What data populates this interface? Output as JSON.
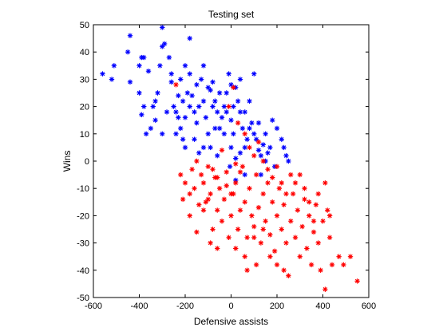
{
  "chart_data": {
    "type": "scatter",
    "title": "Testing set",
    "xlabel": "Defensive assists",
    "ylabel": "Wins",
    "xlim": [
      -600,
      600
    ],
    "ylim": [
      -50,
      50
    ],
    "xticks": [
      -600,
      -400,
      -200,
      0,
      200,
      400,
      600
    ],
    "yticks": [
      50,
      40,
      30,
      20,
      10,
      0,
      -10,
      -20,
      -30,
      -40,
      -50
    ],
    "xtick_labels": [
      "-600",
      "-400",
      "-200",
      "0",
      "200",
      "400",
      "600"
    ],
    "ytick_labels": [
      "50",
      "40",
      "30",
      "20",
      "10",
      "0",
      "-10",
      "-20",
      "-30",
      "-40",
      "-50"
    ],
    "grid": false,
    "marker": "asterisk",
    "series": [
      {
        "color": "#0000ff",
        "points": [
          [
            -560,
            32
          ],
          [
            -510,
            35
          ],
          [
            -520,
            30
          ],
          [
            -440,
            46
          ],
          [
            -450,
            40
          ],
          [
            -440,
            29
          ],
          [
            -400,
            35
          ],
          [
            -390,
            38
          ],
          [
            -380,
            38
          ],
          [
            -360,
            33
          ],
          [
            -400,
            25
          ],
          [
            -380,
            20
          ],
          [
            -390,
            17
          ],
          [
            -370,
            10
          ],
          [
            -350,
            12
          ],
          [
            -340,
            20
          ],
          [
            -330,
            22
          ],
          [
            -320,
            25
          ],
          [
            -310,
            35
          ],
          [
            -300,
            42
          ],
          [
            -300,
            49
          ],
          [
            -290,
            43
          ],
          [
            -270,
            38
          ],
          [
            -260,
            29
          ],
          [
            -250,
            20
          ],
          [
            -240,
            18
          ],
          [
            -230,
            24
          ],
          [
            -220,
            30
          ],
          [
            -210,
            22
          ],
          [
            -200,
            16
          ],
          [
            -190,
            25
          ],
          [
            -180,
            32
          ],
          [
            -170,
            24
          ],
          [
            -160,
            18
          ],
          [
            -150,
            14
          ],
          [
            -140,
            20
          ],
          [
            -130,
            30
          ],
          [
            -120,
            22
          ],
          [
            -110,
            16
          ],
          [
            -100,
            10
          ],
          [
            -90,
            26
          ],
          [
            -80,
            29
          ],
          [
            -70,
            22
          ],
          [
            -60,
            18
          ],
          [
            -50,
            12
          ],
          [
            -40,
            16
          ],
          [
            -30,
            20
          ],
          [
            -20,
            25
          ],
          [
            -10,
            32
          ],
          [
            0,
            15
          ],
          [
            10,
            10
          ],
          [
            20,
            27
          ],
          [
            30,
            22
          ],
          [
            40,
            18
          ],
          [
            50,
            12
          ],
          [
            60,
            5
          ],
          [
            70,
            8
          ],
          [
            80,
            12
          ],
          [
            90,
            14
          ],
          [
            100,
            10
          ],
          [
            110,
            8
          ],
          [
            120,
            4
          ],
          [
            130,
            2
          ],
          [
            140,
            6
          ],
          [
            150,
            10
          ],
          [
            160,
            3
          ],
          [
            170,
            5
          ],
          [
            180,
            15
          ],
          [
            200,
            12
          ],
          [
            220,
            8
          ],
          [
            230,
            5
          ],
          [
            240,
            2
          ],
          [
            250,
            0
          ],
          [
            -180,
            45
          ],
          [
            -150,
            28
          ],
          [
            -120,
            35
          ],
          [
            -80,
            20
          ],
          [
            -50,
            25
          ],
          [
            -20,
            18
          ],
          [
            0,
            28
          ],
          [
            40,
            30
          ],
          [
            80,
            22
          ],
          [
            100,
            32
          ],
          [
            -260,
            32
          ],
          [
            -240,
            10
          ],
          [
            -220,
            12
          ],
          [
            -200,
            5
          ],
          [
            -160,
            8
          ],
          [
            -140,
            3
          ],
          [
            -120,
            5
          ],
          [
            -90,
            5
          ],
          [
            -60,
            2
          ],
          [
            -30,
            10
          ],
          [
            0,
            5
          ],
          [
            20,
            1
          ],
          [
            40,
            3
          ],
          [
            -330,
            15
          ],
          [
            -300,
            10
          ],
          [
            -280,
            18
          ],
          [
            -210,
            8
          ],
          [
            -180,
            20
          ],
          [
            -100,
            27
          ],
          [
            -70,
            12
          ],
          [
            10,
            20
          ],
          [
            60,
            18
          ],
          [
            120,
            14
          ],
          [
            150,
            0
          ],
          [
            190,
            -2
          ],
          [
            130,
            -5
          ],
          [
            60,
            -5
          ],
          [
            20,
            -7
          ],
          [
            -5,
            -2
          ],
          [
            -200,
            35
          ],
          [
            -230,
            16
          ]
        ]
      },
      {
        "color": "#ff0000",
        "points": [
          [
            -240,
            28
          ],
          [
            -220,
            -5
          ],
          [
            -200,
            -8
          ],
          [
            -180,
            -12
          ],
          [
            -170,
            -3
          ],
          [
            -160,
            -10
          ],
          [
            -150,
            0
          ],
          [
            -130,
            -5
          ],
          [
            -120,
            -8
          ],
          [
            -110,
            -15
          ],
          [
            -100,
            -2
          ],
          [
            -90,
            -12
          ],
          [
            -80,
            -25
          ],
          [
            -70,
            -6
          ],
          [
            -60,
            -18
          ],
          [
            -50,
            -10
          ],
          [
            -40,
            -22
          ],
          [
            -30,
            -14
          ],
          [
            -20,
            -4
          ],
          [
            -10,
            -28
          ],
          [
            0,
            -20
          ],
          [
            10,
            -12
          ],
          [
            20,
            -8
          ],
          [
            30,
            -25
          ],
          [
            40,
            -18
          ],
          [
            50,
            -2
          ],
          [
            60,
            -15
          ],
          [
            70,
            -28
          ],
          [
            80,
            -10
          ],
          [
            90,
            -20
          ],
          [
            100,
            -24
          ],
          [
            110,
            -5
          ],
          [
            120,
            -17
          ],
          [
            130,
            -30
          ],
          [
            140,
            -12
          ],
          [
            150,
            -22
          ],
          [
            160,
            -8
          ],
          [
            170,
            -27
          ],
          [
            180,
            -15
          ],
          [
            190,
            -33
          ],
          [
            200,
            -20
          ],
          [
            210,
            -10
          ],
          [
            220,
            -25
          ],
          [
            230,
            -16
          ],
          [
            240,
            -30
          ],
          [
            250,
            -42
          ],
          [
            260,
            -22
          ],
          [
            270,
            -12
          ],
          [
            280,
            -28
          ],
          [
            290,
            -18
          ],
          [
            300,
            -35
          ],
          [
            310,
            -24
          ],
          [
            320,
            -14
          ],
          [
            330,
            -32
          ],
          [
            340,
            -20
          ],
          [
            350,
            -38
          ],
          [
            360,
            -26
          ],
          [
            370,
            -16
          ],
          [
            380,
            -30
          ],
          [
            390,
            -40
          ],
          [
            400,
            -22
          ],
          [
            410,
            -47
          ],
          [
            420,
            -18
          ],
          [
            430,
            -28
          ],
          [
            440,
            -38
          ],
          [
            470,
            -35
          ],
          [
            490,
            -38
          ],
          [
            520,
            -35
          ],
          [
            550,
            -44
          ],
          [
            -10,
            20
          ],
          [
            10,
            27
          ],
          [
            30,
            14
          ],
          [
            60,
            10
          ],
          [
            80,
            5
          ],
          [
            100,
            2
          ],
          [
            120,
            7
          ],
          [
            140,
            0
          ],
          [
            160,
            -3
          ],
          [
            180,
            -6
          ],
          [
            200,
            -2
          ],
          [
            220,
            -8
          ],
          [
            240,
            -12
          ],
          [
            260,
            -5
          ],
          [
            20,
            -1
          ],
          [
            40,
            -4
          ],
          [
            0,
            -12
          ],
          [
            -20,
            -9
          ],
          [
            -60,
            -6
          ],
          [
            -80,
            -3
          ],
          [
            -40,
            4
          ],
          [
            -100,
            -14
          ],
          [
            -140,
            -16
          ],
          [
            -180,
            -20
          ],
          [
            -210,
            -14
          ],
          [
            -150,
            -26
          ],
          [
            -120,
            -18
          ],
          [
            -90,
            -30
          ],
          [
            -60,
            -32
          ],
          [
            20,
            -32
          ],
          [
            60,
            -35
          ],
          [
            100,
            -28
          ],
          [
            280,
            -8
          ],
          [
            300,
            -5
          ],
          [
            320,
            -10
          ],
          [
            340,
            -15
          ],
          [
            360,
            -22
          ],
          [
            380,
            -12
          ],
          [
            410,
            -8
          ],
          [
            430,
            -20
          ],
          [
            170,
            -35
          ],
          [
            200,
            -38
          ],
          [
            230,
            -40
          ],
          [
            140,
            -25
          ],
          [
            110,
            -38
          ],
          [
            70,
            -40
          ]
        ]
      }
    ]
  }
}
